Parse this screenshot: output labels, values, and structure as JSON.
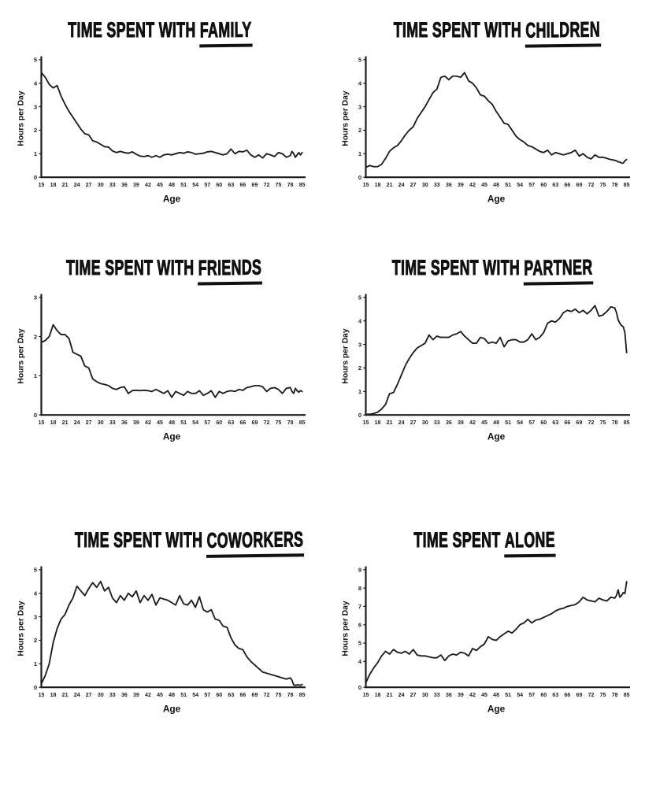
{
  "page": {
    "background": "#ffffff",
    "text_color": "#111111",
    "axis_color": "#1a1a1a"
  },
  "chart_data": {
    "type": "line",
    "x_label": "Age",
    "y_label": "Hours per Day",
    "line_color": "#1c1c1c",
    "x_tick_labels": [
      "15",
      "18",
      "21",
      "24",
      "27",
      "30",
      "33",
      "36",
      "39",
      "42",
      "45",
      "48",
      "51",
      "54",
      "57",
      "60",
      "63",
      "66",
      "69",
      "72",
      "75",
      "78",
      "85"
    ],
    "x_tick_values": [
      15,
      18,
      21,
      24,
      27,
      30,
      33,
      36,
      39,
      42,
      45,
      48,
      51,
      54,
      57,
      60,
      63,
      66,
      69,
      72,
      75,
      78,
      85
    ],
    "ages": [
      15,
      16,
      17,
      18,
      19,
      20,
      21,
      22,
      23,
      24,
      25,
      26,
      27,
      28,
      29,
      30,
      31,
      32,
      33,
      34,
      35,
      36,
      37,
      38,
      39,
      40,
      41,
      42,
      43,
      44,
      45,
      46,
      47,
      48,
      49,
      50,
      51,
      52,
      53,
      54,
      55,
      56,
      57,
      58,
      59,
      60,
      61,
      62,
      63,
      64,
      65,
      66,
      67,
      68,
      69,
      70,
      71,
      72,
      73,
      74,
      75,
      76,
      77,
      78,
      79,
      80,
      81,
      82,
      83,
      84,
      85
    ],
    "charts": [
      {
        "id": "family",
        "title_prefix": "TIME SPENT WITH",
        "title_emphasis": "FAMILY",
        "y_ticks": [
          0,
          1,
          2,
          3,
          4,
          5
        ],
        "y_tick_positions": [
          0,
          0.2,
          0.4,
          0.6,
          0.8,
          1
        ],
        "values": [
          4.45,
          4.25,
          3.95,
          3.8,
          3.9,
          3.45,
          3.1,
          2.8,
          2.55,
          2.3,
          2.05,
          1.85,
          1.8,
          1.55,
          1.5,
          1.4,
          1.3,
          1.28,
          1.12,
          1.05,
          1.1,
          1.05,
          1.02,
          1.08,
          0.98,
          0.9,
          0.88,
          0.92,
          0.85,
          0.92,
          0.85,
          0.95,
          0.98,
          0.95,
          1.0,
          1.05,
          1.02,
          1.08,
          1.05,
          0.98,
          1.0,
          1.02,
          1.08,
          1.1,
          1.05,
          1.0,
          0.95,
          1.0,
          1.2,
          1.0,
          1.1,
          1.08,
          1.15,
          0.95,
          0.85,
          0.95,
          0.82,
          1.0,
          0.95,
          0.88,
          1.05,
          1.0,
          0.85,
          0.92,
          1.1,
          1.0,
          0.85,
          0.95,
          1.05,
          0.95,
          1.05
        ]
      },
      {
        "id": "children",
        "title_prefix": "TIME SPENT WITH",
        "title_emphasis": "CHILDREN",
        "y_ticks": [
          0,
          1,
          2,
          3,
          4,
          5
        ],
        "y_tick_positions": [
          0,
          0.2,
          0.4,
          0.6,
          0.8,
          1
        ],
        "values": [
          0.42,
          0.5,
          0.45,
          0.45,
          0.55,
          0.8,
          1.1,
          1.25,
          1.35,
          1.55,
          1.8,
          2.0,
          2.15,
          2.5,
          2.75,
          3.0,
          3.3,
          3.6,
          3.75,
          4.25,
          4.3,
          4.15,
          4.3,
          4.3,
          4.25,
          4.45,
          4.1,
          4.0,
          3.8,
          3.5,
          3.45,
          3.25,
          3.1,
          2.8,
          2.55,
          2.3,
          2.25,
          2.0,
          1.75,
          1.6,
          1.5,
          1.35,
          1.3,
          1.2,
          1.1,
          1.05,
          1.15,
          0.95,
          1.05,
          1.0,
          0.95,
          1.0,
          1.05,
          1.15,
          0.9,
          1.0,
          0.85,
          0.78,
          0.95,
          0.85,
          0.85,
          0.8,
          0.75,
          0.72,
          0.7,
          0.65,
          0.65,
          0.6,
          0.6,
          0.7,
          0.75
        ]
      },
      {
        "id": "friends",
        "title_prefix": "TIME SPENT WITH",
        "title_emphasis": "FRIENDS",
        "y_ticks": [
          0,
          1,
          2,
          3
        ],
        "y_tick_positions": [
          0,
          0.333,
          0.667,
          1
        ],
        "values": [
          1.85,
          1.9,
          2.0,
          2.3,
          2.15,
          2.05,
          2.05,
          1.95,
          1.6,
          1.55,
          1.5,
          1.25,
          1.2,
          0.92,
          0.85,
          0.8,
          0.78,
          0.75,
          0.68,
          0.65,
          0.7,
          0.72,
          0.55,
          0.62,
          0.63,
          0.62,
          0.63,
          0.62,
          0.6,
          0.65,
          0.6,
          0.55,
          0.62,
          0.45,
          0.6,
          0.55,
          0.5,
          0.6,
          0.55,
          0.55,
          0.62,
          0.5,
          0.55,
          0.62,
          0.45,
          0.6,
          0.55,
          0.6,
          0.62,
          0.6,
          0.65,
          0.63,
          0.7,
          0.72,
          0.75,
          0.75,
          0.72,
          0.6,
          0.68,
          0.7,
          0.65,
          0.55,
          0.68,
          0.7,
          0.6,
          0.55,
          0.68,
          0.62,
          0.58,
          0.62,
          0.6
        ]
      },
      {
        "id": "partner",
        "title_prefix": "TIME SPENT WITH",
        "title_emphasis": "PARTNER",
        "y_ticks": [
          0,
          1,
          2,
          3,
          4,
          5
        ],
        "y_tick_positions": [
          0,
          0.2,
          0.4,
          0.6,
          0.8,
          1
        ],
        "values": [
          0.03,
          0.03,
          0.06,
          0.12,
          0.25,
          0.45,
          0.9,
          0.95,
          1.3,
          1.7,
          2.1,
          2.4,
          2.65,
          2.85,
          2.95,
          3.05,
          3.4,
          3.2,
          3.35,
          3.3,
          3.3,
          3.3,
          3.4,
          3.45,
          3.55,
          3.35,
          3.2,
          3.05,
          3.05,
          3.3,
          3.25,
          3.05,
          3.1,
          3.05,
          3.3,
          2.9,
          3.15,
          3.2,
          3.2,
          3.1,
          3.1,
          3.2,
          3.45,
          3.2,
          3.3,
          3.5,
          3.9,
          4.0,
          3.95,
          4.1,
          4.35,
          4.45,
          4.4,
          4.5,
          4.35,
          4.45,
          4.3,
          4.45,
          4.65,
          4.2,
          4.25,
          4.4,
          4.6,
          4.55,
          4.35,
          4.05,
          3.9,
          3.8,
          3.75,
          3.5,
          2.65
        ]
      },
      {
        "id": "coworkers",
        "title_prefix": "TIME SPENT WITH",
        "title_emphasis": "COWORKERS",
        "y_ticks": [
          0,
          1,
          2,
          3,
          4,
          5
        ],
        "y_tick_positions": [
          0,
          0.2,
          0.4,
          0.6,
          0.8,
          1
        ],
        "values": [
          0.15,
          0.5,
          1.0,
          1.9,
          2.5,
          2.9,
          3.1,
          3.5,
          3.8,
          4.3,
          4.1,
          3.9,
          4.2,
          4.45,
          4.25,
          4.5,
          4.1,
          4.25,
          3.8,
          3.6,
          3.9,
          3.7,
          4.0,
          3.85,
          4.1,
          3.6,
          3.9,
          3.7,
          3.95,
          3.5,
          3.8,
          3.75,
          3.7,
          3.6,
          3.5,
          3.9,
          3.55,
          3.5,
          3.7,
          3.4,
          3.85,
          3.3,
          3.2,
          3.3,
          2.9,
          2.85,
          2.6,
          2.55,
          2.1,
          1.8,
          1.65,
          1.6,
          1.3,
          1.1,
          0.95,
          0.8,
          0.65,
          0.6,
          0.55,
          0.5,
          0.45,
          0.4,
          0.35,
          0.4,
          0.3,
          0.1,
          0.08,
          0.1,
          0.1,
          0.08,
          0.12
        ]
      },
      {
        "id": "alone",
        "title_prefix": "TIME SPENT",
        "title_emphasis": "ALONE",
        "y_ticks": [
          0,
          4,
          5,
          6,
          7,
          8,
          9
        ],
        "y_tick_positions": [
          0,
          0.22,
          0.376,
          0.532,
          0.688,
          0.844,
          1
        ],
        "values": [
          0.7,
          2.0,
          3.0,
          3.8,
          4.3,
          4.55,
          4.4,
          4.65,
          4.5,
          4.45,
          4.55,
          4.4,
          4.65,
          4.35,
          4.3,
          4.3,
          4.25,
          4.2,
          4.2,
          4.35,
          4.05,
          4.3,
          4.4,
          4.35,
          4.5,
          4.45,
          4.3,
          4.7,
          4.6,
          4.8,
          4.95,
          5.35,
          5.2,
          5.15,
          5.35,
          5.5,
          5.65,
          5.55,
          5.75,
          6.0,
          6.1,
          6.3,
          6.1,
          6.25,
          6.3,
          6.4,
          6.5,
          6.6,
          6.75,
          6.85,
          6.9,
          7.0,
          7.05,
          7.1,
          7.25,
          7.5,
          7.35,
          7.3,
          7.25,
          7.45,
          7.35,
          7.3,
          7.5,
          7.45,
          7.6,
          7.9,
          7.5,
          7.6,
          7.75,
          7.7,
          8.35
        ]
      }
    ]
  }
}
